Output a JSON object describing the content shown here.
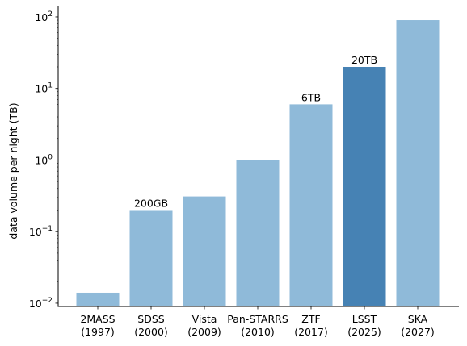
{
  "chart_data": {
    "type": "bar",
    "ylabel": "data volume per night (TB)",
    "yscale": "log",
    "ylim": [
      0.009,
      140
    ],
    "yticks": [
      {
        "value": 0.01,
        "base": "10",
        "exp": "−2"
      },
      {
        "value": 0.1,
        "base": "10",
        "exp": "−1"
      },
      {
        "value": 1,
        "base": "10",
        "exp": "0"
      },
      {
        "value": 10,
        "base": "10",
        "exp": "1"
      },
      {
        "value": 100,
        "base": "10",
        "exp": "2"
      }
    ],
    "categories": [
      {
        "name": "2MASS",
        "year": "(1997)"
      },
      {
        "name": "SDSS",
        "year": "(2000)"
      },
      {
        "name": "Vista",
        "year": "(2009)"
      },
      {
        "name": "Pan-STARRS",
        "year": "(2010)"
      },
      {
        "name": "ZTF",
        "year": "(2017)"
      },
      {
        "name": "LSST",
        "year": "(2025)"
      },
      {
        "name": "SKA",
        "year": "(2027)"
      }
    ],
    "values": [
      0.014,
      0.2,
      0.31,
      1.0,
      6.0,
      20.0,
      90.0
    ],
    "bar_labels": [
      "",
      "200GB",
      "",
      "",
      "6TB",
      "20TB",
      ""
    ],
    "colors": [
      "#8fbad9",
      "#8fbad9",
      "#8fbad9",
      "#8fbad9",
      "#8fbad9",
      "#4682b4",
      "#8fbad9"
    ],
    "grid": false
  }
}
